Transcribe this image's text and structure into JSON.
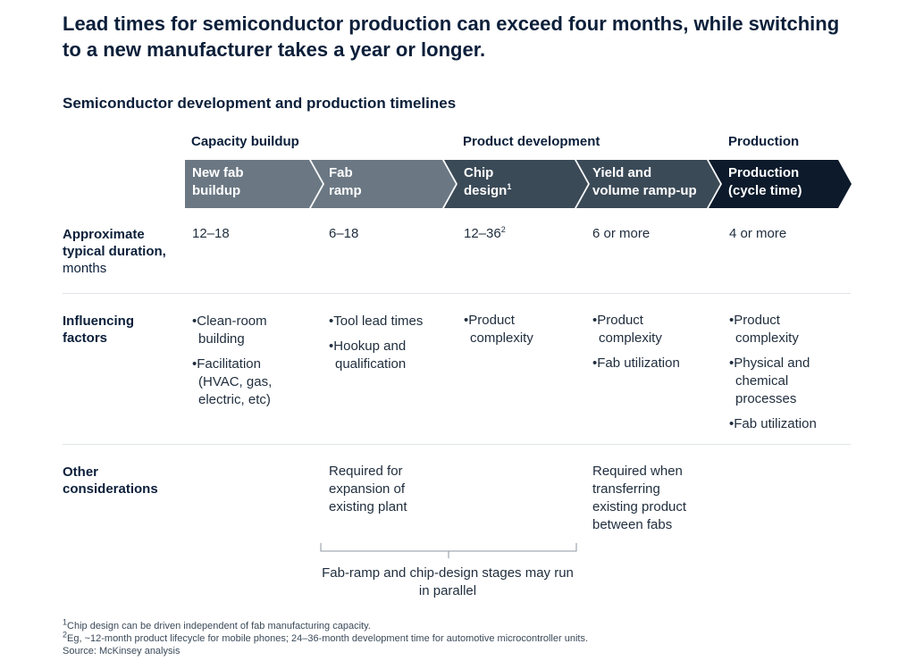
{
  "headline": "Lead times for semiconductor production can exceed four months, while switching to a new manufacturer takes a year or longer.",
  "subtitle": "Semiconductor development and production timelines",
  "phases": [
    {
      "label": "Capacity buildup"
    },
    {
      "label": "Product development"
    },
    {
      "label": "Production"
    }
  ],
  "stages": [
    {
      "line1": "New fab",
      "line2": "buildup",
      "sup": "",
      "color": "#6b7884"
    },
    {
      "line1": "Fab",
      "line2": "ramp",
      "sup": "",
      "color": "#6b7884"
    },
    {
      "line1": "Chip",
      "line2": "design",
      "sup": "1",
      "color": "#3b4a57"
    },
    {
      "line1": "Yield and",
      "line2": "volume ramp-up",
      "sup": "",
      "color": "#3b4a57"
    },
    {
      "line1": "Production",
      "line2": "(cycle time)",
      "sup": "",
      "color": "#0c1a2b"
    }
  ],
  "rows": {
    "duration": {
      "label_bold_1": "Approximate",
      "label_bold_2": "typical duration,",
      "label_light": "months",
      "values": [
        "12–18",
        "6–18",
        "12–36",
        "6 or more",
        "4 or more"
      ],
      "value_sup": [
        "",
        "",
        "2",
        "",
        ""
      ]
    },
    "factors": {
      "label_1": "Influencing",
      "label_2": "factors",
      "col0": [
        "Clean-room building",
        "Facilitation (HVAC, gas, electric, etc)"
      ],
      "col1": [
        "Tool lead times",
        "Hookup and qualification"
      ],
      "col2": [
        "Product complexity"
      ],
      "col3": [
        "Product complexity",
        "Fab utilization"
      ],
      "col4": [
        "Product complexity",
        "Physical and chemical processes",
        "Fab utilization"
      ]
    },
    "other": {
      "label_1": "Other",
      "label_2": "considerations",
      "col1": "Required for expansion of existing plant",
      "col3": "Required when transferring existing product between fabs"
    }
  },
  "bracket_note": "Fab-ramp and chip-design stages may run in parallel",
  "footnotes": {
    "f1_sup": "1",
    "f1": "Chip design can be driven independent of fab manufacturing capacity.",
    "f2_sup": "2",
    "f2": "Eg, ~12-month product lifecycle for mobile phones; 24–36-month development time for automotive microcontroller units.",
    "source": "Source: McKinsey analysis"
  }
}
